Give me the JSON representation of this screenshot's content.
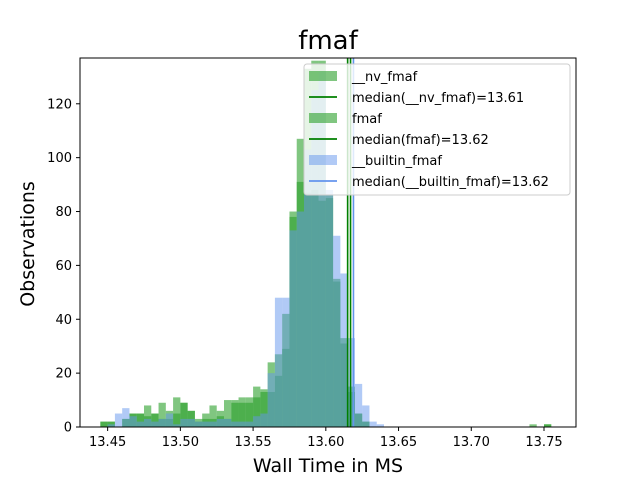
{
  "chart_data": {
    "type": "histogram",
    "title": "fmaf",
    "xlabel": "Wall Time in MS",
    "ylabel": "Observations",
    "xlim": [
      13.431,
      13.772
    ],
    "ylim": [
      0,
      137
    ],
    "xticks": [
      "13.45",
      "13.50",
      "13.55",
      "13.60",
      "13.65",
      "13.70",
      "13.75"
    ],
    "xtick_values": [
      13.45,
      13.5,
      13.55,
      13.6,
      13.65,
      13.7,
      13.75
    ],
    "yticks": [
      "0",
      "20",
      "40",
      "60",
      "80",
      "100",
      "120"
    ],
    "ytick_values": [
      0,
      20,
      40,
      60,
      80,
      100,
      120
    ],
    "bin_width": 0.005,
    "legend_position": "upper right",
    "series": [
      {
        "name": "__nv_fmaf",
        "color": "#2ca02c",
        "alpha": 0.6,
        "bin_starts": [
          13.445,
          13.45,
          13.455,
          13.46,
          13.465,
          13.47,
          13.475,
          13.48,
          13.485,
          13.49,
          13.495,
          13.5,
          13.505,
          13.51,
          13.515,
          13.52,
          13.525,
          13.53,
          13.535,
          13.54,
          13.545,
          13.55,
          13.555,
          13.56,
          13.565,
          13.57,
          13.575,
          13.58,
          13.585,
          13.59,
          13.595,
          13.6,
          13.605,
          13.61,
          13.615,
          13.62,
          13.625,
          13.63,
          13.635,
          13.64,
          13.645,
          13.65,
          13.655,
          13.66,
          13.665,
          13.67,
          13.675,
          13.68,
          13.685,
          13.69,
          13.695,
          13.7,
          13.705,
          13.71,
          13.715,
          13.72,
          13.725,
          13.73,
          13.735,
          13.74,
          13.745,
          13.75,
          13.755
        ],
        "counts": [
          2,
          2,
          0,
          3,
          5,
          5,
          8,
          5,
          9,
          3,
          11,
          9,
          6,
          3,
          5,
          8,
          6,
          10,
          10,
          11,
          11,
          15,
          13,
          24,
          27,
          42,
          80,
          107,
          133,
          136,
          136,
          86,
          54,
          31,
          13,
          5,
          2,
          0,
          0,
          0,
          0,
          0,
          0,
          0,
          0,
          0,
          0,
          0,
          0,
          0,
          0,
          0,
          0,
          0,
          0,
          0,
          0,
          0,
          0,
          1,
          0,
          1,
          0
        ]
      },
      {
        "name": "fmaf",
        "color": "#2ca02c",
        "alpha": 0.6,
        "bin_starts": [
          13.445,
          13.45,
          13.455,
          13.46,
          13.465,
          13.47,
          13.475,
          13.48,
          13.485,
          13.49,
          13.495,
          13.5,
          13.505,
          13.51,
          13.515,
          13.52,
          13.525,
          13.53,
          13.535,
          13.54,
          13.545,
          13.55,
          13.555,
          13.56,
          13.565,
          13.57,
          13.575,
          13.58,
          13.585,
          13.59,
          13.595,
          13.6,
          13.605,
          13.61,
          13.615,
          13.62,
          13.625,
          13.63,
          13.635,
          13.64,
          13.645,
          13.65,
          13.655,
          13.66,
          13.665,
          13.67,
          13.675,
          13.68,
          13.685,
          13.69,
          13.695,
          13.7,
          13.705,
          13.71,
          13.715,
          13.72,
          13.725,
          13.73,
          13.735,
          13.74,
          13.745,
          13.75,
          13.755
        ],
        "counts": [
          2,
          2,
          0,
          3,
          5,
          5,
          4,
          5,
          3,
          6,
          5,
          9,
          6,
          2,
          3,
          3,
          4,
          3,
          9,
          9,
          9,
          11,
          14,
          13,
          19,
          29,
          78,
          91,
          87,
          88,
          84,
          85,
          55,
          33,
          15,
          5,
          2,
          0,
          0,
          0,
          0,
          0,
          0,
          0,
          0,
          0,
          0,
          0,
          0,
          0,
          0,
          0,
          0,
          0,
          0,
          0,
          0,
          0,
          0,
          0,
          0,
          1,
          0
        ]
      },
      {
        "name": "__builtin_fmaf",
        "color": "#6495ed",
        "alpha": 0.5,
        "bin_starts": [
          13.445,
          13.45,
          13.455,
          13.46,
          13.465,
          13.47,
          13.475,
          13.48,
          13.485,
          13.49,
          13.495,
          13.5,
          13.505,
          13.51,
          13.515,
          13.52,
          13.525,
          13.53,
          13.535,
          13.54,
          13.545,
          13.55,
          13.555,
          13.56,
          13.565,
          13.57,
          13.575,
          13.58,
          13.585,
          13.59,
          13.595,
          13.6,
          13.605,
          13.61,
          13.615,
          13.62,
          13.625,
          13.63,
          13.635,
          13.64,
          13.645,
          13.65,
          13.655,
          13.66,
          13.665,
          13.67,
          13.675,
          13.68,
          13.685,
          13.69,
          13.695,
          13.7,
          13.705,
          13.71,
          13.715,
          13.72,
          13.725,
          13.73,
          13.735,
          13.74,
          13.745,
          13.75,
          13.755
        ],
        "counts": [
          0,
          1,
          5,
          7,
          4,
          2,
          3,
          2,
          3,
          5,
          1,
          3,
          3,
          2,
          2,
          2,
          3,
          3,
          2,
          2,
          2,
          4,
          5,
          20,
          48,
          48,
          73,
          80,
          103,
          125,
          132,
          88,
          71,
          57,
          33,
          16,
          8,
          2,
          1,
          0,
          0,
          0,
          0,
          0,
          0,
          0,
          0,
          0,
          0,
          0,
          0,
          0,
          0,
          0,
          0,
          0,
          0,
          0,
          0,
          0,
          0,
          0,
          0
        ]
      }
    ],
    "medians": [
      {
        "label": "median(__nv_fmaf)=13.61",
        "value": 13.615,
        "color": "#008000"
      },
      {
        "label": "median(fmaf)=13.62",
        "value": 13.617,
        "color": "#008000"
      },
      {
        "label": "median(__builtin_fmaf)=13.62",
        "value": 13.619,
        "color": "#6495ed"
      }
    ],
    "legend": [
      {
        "label": "__nv_fmaf",
        "kind": "patch",
        "color": "#2ca02c",
        "alpha": 0.6
      },
      {
        "label": "median(__nv_fmaf)=13.61",
        "kind": "line",
        "color": "#008000"
      },
      {
        "label": "fmaf",
        "kind": "patch",
        "color": "#2ca02c",
        "alpha": 0.6
      },
      {
        "label": "median(fmaf)=13.62",
        "kind": "line",
        "color": "#008000"
      },
      {
        "label": "__builtin_fmaf",
        "kind": "patch",
        "color": "#6495ed",
        "alpha": 0.5
      },
      {
        "label": "median(__builtin_fmaf)=13.62",
        "kind": "line",
        "color": "#6495ed"
      }
    ]
  }
}
